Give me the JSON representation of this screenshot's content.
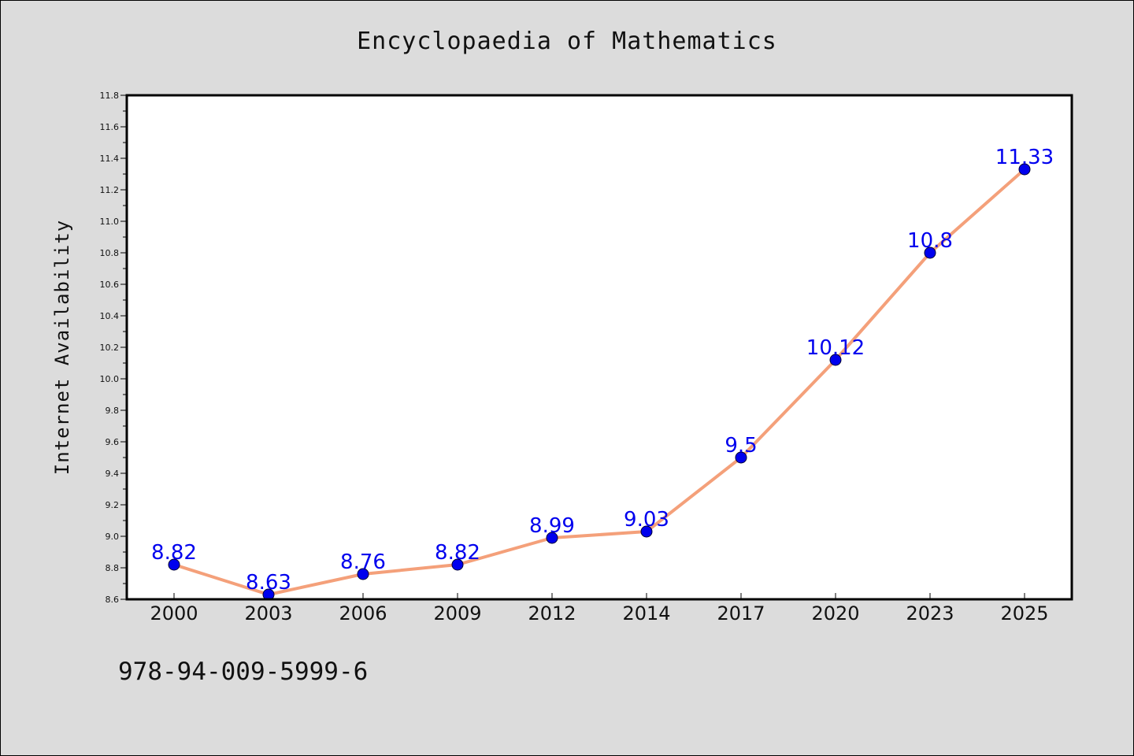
{
  "figure": {
    "title": "Encyclopaedia of Mathematics",
    "footer": "978-94-009-5999-6"
  },
  "chart_data": {
    "type": "line",
    "title": "Encyclopaedia of Mathematics",
    "xlabel": "",
    "ylabel": "Internet Availability",
    "categories": [
      "2000",
      "2003",
      "2006",
      "2009",
      "2012",
      "2014",
      "2017",
      "2020",
      "2023",
      "2025"
    ],
    "series": [
      {
        "values": [
          8.82,
          8.63,
          8.76,
          8.82,
          8.99,
          9.03,
          9.5,
          10.12,
          10.8,
          11.33
        ],
        "labels": [
          "8.82",
          "8.63",
          "8.76",
          "8.82",
          "8.99",
          "9.03",
          "9.5",
          "10.12",
          "10.8",
          "11.33"
        ],
        "line_color": "#f4a07a",
        "marker_color": "#0000ee",
        "label_color": "#0000ee"
      }
    ],
    "ylim": [
      8.6,
      11.8
    ],
    "yticks": [
      "8.6",
      "8.8",
      "9.0",
      "9.2",
      "9.4",
      "9.6",
      "9.8",
      "10.0",
      "10.2",
      "10.4",
      "10.6",
      "10.8",
      "11.0",
      "11.2",
      "11.4",
      "11.6",
      "11.8"
    ],
    "grid": false,
    "legend": "none",
    "background": "#dcdcdc",
    "plot_background": "#ffffff"
  }
}
